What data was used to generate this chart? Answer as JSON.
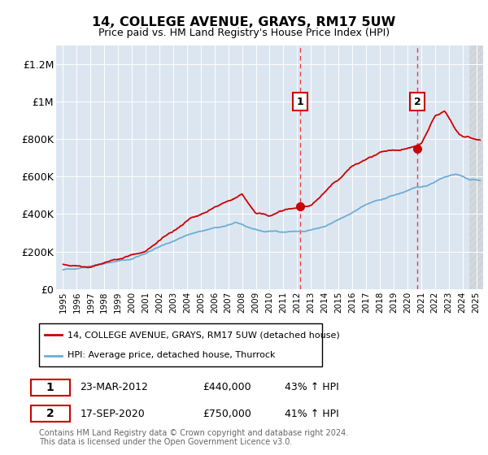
{
  "title": "14, COLLEGE AVENUE, GRAYS, RM17 5UW",
  "subtitle": "Price paid vs. HM Land Registry's House Price Index (HPI)",
  "ylabel_ticks": [
    "£0",
    "£200K",
    "£400K",
    "£600K",
    "£800K",
    "£1M",
    "£1.2M"
  ],
  "ytick_values": [
    0,
    200000,
    400000,
    600000,
    800000,
    1000000,
    1200000
  ],
  "ylim": [
    0,
    1300000
  ],
  "xlim_start": 1994.5,
  "xlim_end": 2025.5,
  "hpi_color": "#6baed6",
  "price_color": "#cc0000",
  "marker1_date": 2012.22,
  "marker1_price": 440000,
  "marker1_label": "1",
  "marker2_date": 2020.72,
  "marker2_price": 750000,
  "marker2_label": "2",
  "legend_line1": "14, COLLEGE AVENUE, GRAYS, RM17 5UW (detached house)",
  "legend_line2": "HPI: Average price, detached house, Thurrock",
  "table_row1": [
    "1",
    "23-MAR-2012",
    "£440,000",
    "43% ↑ HPI"
  ],
  "table_row2": [
    "2",
    "17-SEP-2020",
    "£750,000",
    "41% ↑ HPI"
  ],
  "footnote": "Contains HM Land Registry data © Crown copyright and database right 2024.\nThis data is licensed under the Open Government Licence v3.0.",
  "bg_color": "#dce6f1",
  "grid_color": "#ffffff",
  "dashed_color": "#e84040"
}
